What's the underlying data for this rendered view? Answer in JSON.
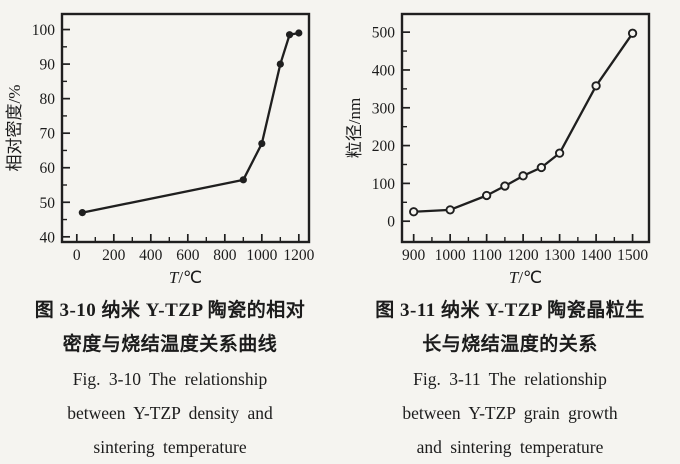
{
  "page": {
    "background": "#f5f4f0",
    "ink_color": "#1f1f1f"
  },
  "figures": [
    {
      "id": "fig-3-10",
      "caption_lines": [
        "图 3-10  纳米 Y-TZP 陶瓷的相对",
        "密度与烧结温度关系曲线",
        "Fig. 3-10  The relationship",
        "between Y-TZP density and",
        "sintering temperature"
      ]
    },
    {
      "id": "fig-3-11",
      "caption_lines": [
        "图 3-11  纳米 Y-TZP 陶瓷晶粒生",
        "长与烧结温度的关系",
        "Fig. 3-11  The relationship",
        "between Y-TZP grain growth",
        "and sintering temperature"
      ]
    }
  ],
  "chart_data": [
    {
      "type": "line",
      "title": "",
      "xlabel": "T/℃",
      "ylabel": "相对密度/%",
      "x": [
        30,
        900,
        1000,
        1100,
        1150,
        1200
      ],
      "y": [
        47,
        56.5,
        67,
        90,
        98.5,
        99
      ],
      "xlim": [
        -80,
        1255
      ],
      "ylim": [
        38.5,
        104.5
      ],
      "xticks": [
        0,
        200,
        400,
        600,
        800,
        1000,
        1200
      ],
      "yticks": [
        40,
        50,
        60,
        70,
        80,
        90,
        100
      ],
      "x_minor_step": 100,
      "y_minor_step": 5,
      "marker": "filled-circle",
      "line_color": "#1f1f1f",
      "grid": false,
      "legend": null
    },
    {
      "type": "line",
      "title": "",
      "xlabel": "T/℃",
      "ylabel": "粒径/nm",
      "x": [
        900,
        1000,
        1100,
        1150,
        1200,
        1250,
        1300,
        1400,
        1500
      ],
      "y": [
        25,
        30,
        68,
        93,
        120,
        142,
        180,
        358,
        497
      ],
      "xlim": [
        868,
        1545
      ],
      "ylim": [
        -55,
        548
      ],
      "xticks": [
        900,
        1000,
        1100,
        1200,
        1300,
        1400,
        1500
      ],
      "yticks": [
        0,
        100,
        200,
        300,
        400,
        500
      ],
      "x_minor_step": 50,
      "y_minor_step": 50,
      "marker": "open-circle",
      "line_color": "#1f1f1f",
      "grid": false,
      "legend": null
    }
  ]
}
